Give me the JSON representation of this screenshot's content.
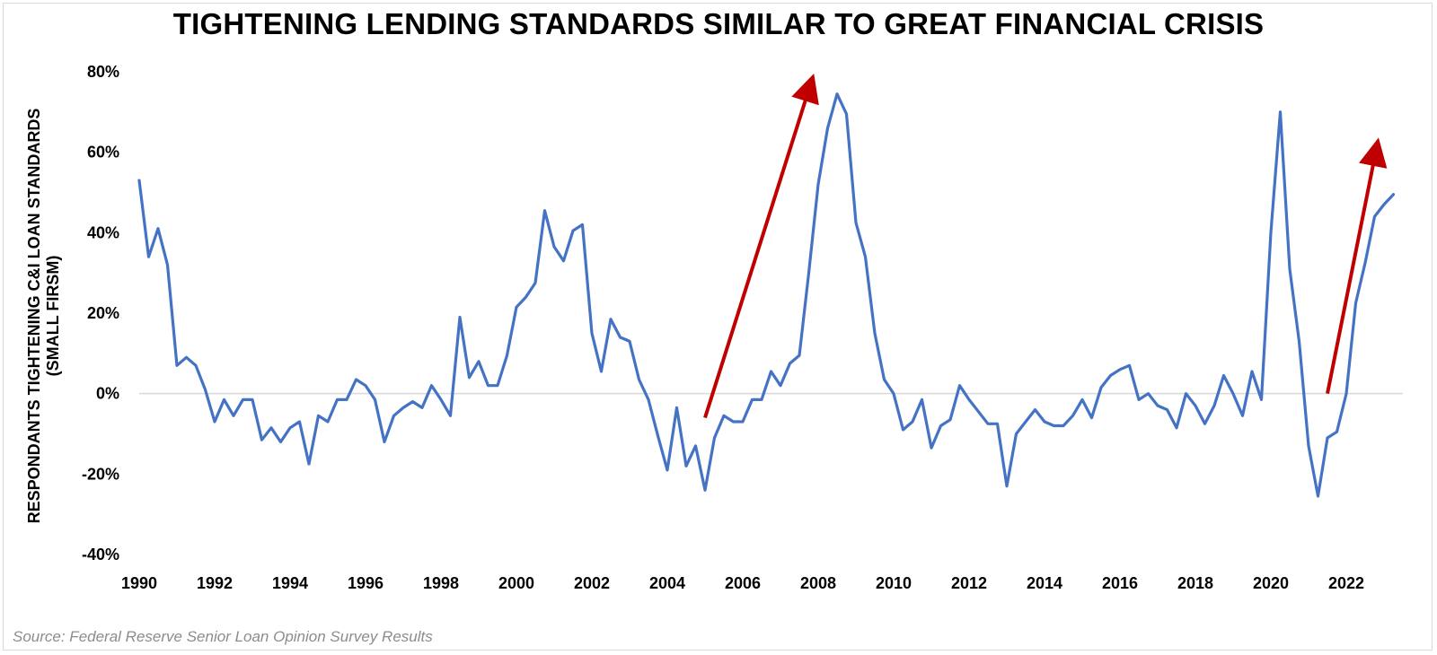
{
  "chart_data": {
    "type": "line",
    "title": "TIGHTENING LENDING STANDARDS SIMILAR TO GREAT FINANCIAL CRISIS",
    "ylabel": "RESPONDANTS TIGHTENING C&I LOAN STANDARDS",
    "ylabel_sub": "(SMALL FIRSM)",
    "xlabel": "",
    "source": "Source: Federal Reserve Senior Loan Opinion Survey Results",
    "ylim": [
      -40,
      80
    ],
    "xlim": [
      1990,
      2023.5
    ],
    "y_ticks": [
      "80%",
      "60%",
      "40%",
      "20%",
      "0%",
      "-20%",
      "-40%"
    ],
    "y_tick_values": [
      80,
      60,
      40,
      20,
      0,
      -20,
      -40
    ],
    "x_ticks": [
      "1990",
      "1992",
      "1994",
      "1996",
      "1998",
      "2000",
      "2002",
      "2004",
      "2006",
      "2008",
      "2010",
      "2012",
      "2014",
      "2016",
      "2018",
      "2020",
      "2022"
    ],
    "x_tick_values": [
      1990,
      1992,
      1994,
      1996,
      1998,
      2000,
      2002,
      2004,
      2006,
      2008,
      2010,
      2012,
      2014,
      2016,
      2018,
      2020,
      2022
    ],
    "grid": false,
    "line_color": "#4472c4",
    "arrow_color": "#c00000",
    "series": [
      {
        "x": [
          1990.0,
          1990.25,
          1990.5,
          1990.75,
          1991.0,
          1991.25,
          1991.5,
          1991.75,
          1992.0,
          1992.25,
          1992.5,
          1992.75,
          1993.0,
          1993.25,
          1993.5,
          1993.75,
          1994.0,
          1994.25,
          1994.5,
          1994.75,
          1995.0,
          1995.25,
          1995.5,
          1995.75,
          1996.0,
          1996.25,
          1996.5,
          1996.75,
          1997.0,
          1997.25,
          1997.5,
          1997.75,
          1998.0,
          1998.25,
          1998.5,
          1998.75,
          1999.0,
          1999.25,
          1999.5,
          1999.75,
          2000.0,
          2000.25,
          2000.5,
          2000.75,
          2001.0,
          2001.25,
          2001.5,
          2001.75,
          2002.0,
          2002.25,
          2002.5,
          2002.75,
          2003.0,
          2003.25,
          2003.5,
          2003.75,
          2004.0,
          2004.25,
          2004.5,
          2004.75,
          2005.0,
          2005.25,
          2005.5,
          2005.75,
          2006.0,
          2006.25,
          2006.5,
          2006.75,
          2007.0,
          2007.25,
          2007.5,
          2007.75,
          2008.0,
          2008.25,
          2008.5,
          2008.75,
          2009.0,
          2009.25,
          2009.5,
          2009.75,
          2010.0,
          2010.25,
          2010.5,
          2010.75,
          2011.0,
          2011.25,
          2011.5,
          2011.75,
          2012.0,
          2012.25,
          2012.5,
          2012.75,
          2013.0,
          2013.25,
          2013.5,
          2013.75,
          2014.0,
          2014.25,
          2014.5,
          2014.75,
          2015.0,
          2015.25,
          2015.5,
          2015.75,
          2016.0,
          2016.25,
          2016.5,
          2016.75,
          2017.0,
          2017.25,
          2017.5,
          2017.75,
          2018.0,
          2018.25,
          2018.5,
          2018.75,
          2019.0,
          2019.25,
          2019.5,
          2019.75,
          2020.0,
          2020.25,
          2020.5,
          2020.75,
          2021.0,
          2021.25,
          2021.5,
          2021.75,
          2022.0,
          2022.25,
          2022.5,
          2022.75,
          2023.0,
          2023.25
        ],
        "values": [
          53,
          34,
          41,
          32,
          7,
          9,
          7,
          1,
          -7,
          -1.5,
          -5.5,
          -1.5,
          -1.5,
          -11.5,
          -8.5,
          -12,
          -8.5,
          -7,
          -17.5,
          -5.5,
          -7,
          -1.5,
          -1.5,
          3.5,
          2,
          -1.5,
          -12,
          -5.5,
          -3.5,
          -2,
          -3.5,
          2,
          -1.5,
          -5.5,
          19,
          4,
          8,
          2,
          2,
          9.5,
          21.5,
          24,
          27.5,
          45.5,
          36.5,
          33,
          40.5,
          42,
          15,
          5.5,
          18.5,
          14,
          13,
          3.5,
          -1.5,
          -10.5,
          -19,
          -3.5,
          -18,
          -13,
          -24,
          -11,
          -5.5,
          -7,
          -7,
          -1.5,
          -1.5,
          5.5,
          2,
          7.5,
          9.5,
          30,
          52,
          66,
          74.5,
          69.5,
          42.5,
          34,
          15,
          3.5,
          0,
          -9,
          -7,
          -1.5,
          -13.5,
          -8,
          -6.5,
          2,
          -1.5,
          -4.5,
          -7.5,
          -7.5,
          -23,
          -10,
          -7,
          -4,
          -7,
          -8,
          -8,
          -5.5,
          -1.5,
          -6,
          1.5,
          4.5,
          6,
          7,
          -1.5,
          0,
          -3,
          -4,
          -8.5,
          0,
          -3,
          -7.5,
          -3,
          4.5,
          0,
          -5.5,
          5.5,
          -1.5,
          40,
          70,
          31,
          13,
          -13,
          -25.5,
          -11,
          -9.5,
          0,
          22.5,
          32.5,
          44,
          47,
          49.5
        ]
      }
    ],
    "annotations": [
      {
        "type": "arrow",
        "from": [
          2005.0,
          -6
        ],
        "to": [
          2007.8,
          77
        ]
      },
      {
        "type": "arrow",
        "from": [
          2021.5,
          0
        ],
        "to": [
          2022.8,
          61
        ]
      }
    ]
  }
}
